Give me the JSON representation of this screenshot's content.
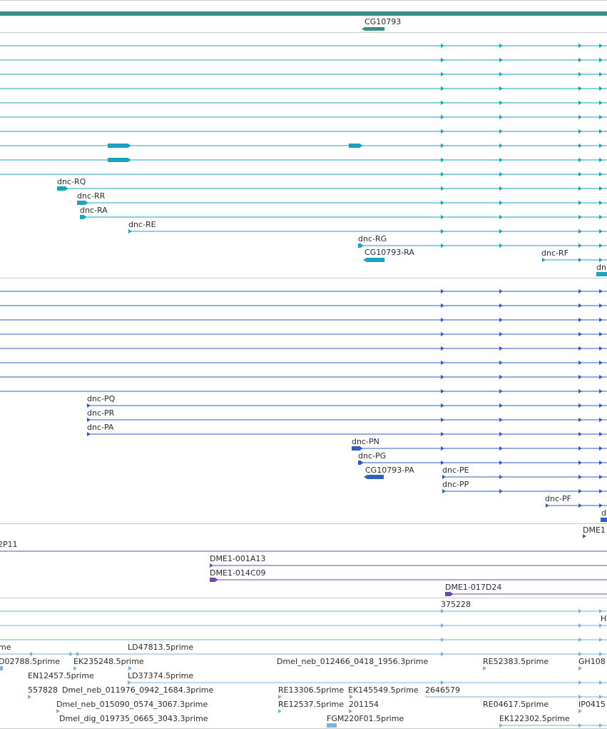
{
  "colors": {
    "gene": "#3a8e8a",
    "transcript": "#19a3c0",
    "protein": "#2e5ec6",
    "clone": "#6b4ba7",
    "est": "#7bb1db",
    "divider": "#c9c9c9"
  },
  "gene_track": {
    "label": "CG10793"
  },
  "transcript_track": {
    "unlabeled_rows": 10,
    "rows": [
      {
        "label": "dnc-RQ"
      },
      {
        "label": "dnc-RR"
      },
      {
        "label": "dnc-RA"
      },
      {
        "label": "dnc-RE"
      },
      {
        "label": "dnc-RG"
      },
      {
        "label": "CG10793-RA"
      },
      {
        "label": "dnc-RF"
      },
      {
        "label": "dn"
      }
    ]
  },
  "protein_track": {
    "unlabeled_rows": 8,
    "rows": [
      {
        "label": "dnc-PQ"
      },
      {
        "label": "dnc-PR"
      },
      {
        "label": "dnc-PA"
      },
      {
        "label": "dnc-PN"
      },
      {
        "label": "dnc-PG"
      },
      {
        "label": "CG10793-PA"
      },
      {
        "label": "dnc-PE"
      },
      {
        "label": "dnc-PP"
      },
      {
        "label": "dnc-PF"
      },
      {
        "label": "d"
      }
    ]
  },
  "clone_track": {
    "labels": [
      "DME1",
      "2P11",
      "DME1-001A13",
      "DME1-014C09",
      "DME1-017D24"
    ]
  },
  "est_track": {
    "labels": [
      "375228",
      "H",
      "me",
      "LD47813.5prime",
      "D02788.5prime",
      "EK235248.5prime",
      "Dmel_neb_012466_0418_1956.3prime",
      "RE52383.5prime",
      "GH108",
      "EN12457.5prime",
      "LD37374.5prime",
      "557828",
      "Dmel_neb_011976_0942_1684.3prime",
      "RE13306.5prime",
      "EK145549.5prime",
      "2646579",
      "Dmel_neb_015090_0574_3067.3prime",
      "RE12537.5prime",
      "201154",
      "RE04617.5prime",
      "IP0415",
      "Dmel_dig_019735_0665_3043.3prime",
      "FGM220F01.5prime",
      "EK122302.5prime"
    ]
  }
}
